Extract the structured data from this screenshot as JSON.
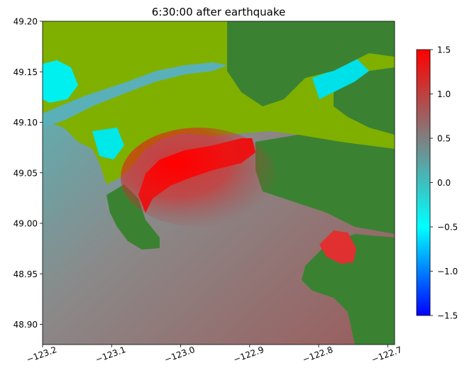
{
  "chart_data": {
    "type": "heatmap",
    "title": "6:30:00 after earthquake",
    "xlabel": "",
    "ylabel": "",
    "xlim": [
      -123.2,
      -122.69
    ],
    "ylim": [
      48.88,
      49.2
    ],
    "x_ticks": [
      "−123.2",
      "−123.1",
      "−123.0",
      "−122.9",
      "−122.8",
      "−122.7"
    ],
    "x_tick_values": [
      -123.2,
      -123.1,
      -123.0,
      -122.9,
      -122.8,
      -122.7
    ],
    "y_ticks": [
      "49.20",
      "49.15",
      "49.10",
      "49.05",
      "49.00",
      "48.95",
      "48.90"
    ],
    "y_tick_values": [
      49.2,
      49.15,
      49.1,
      49.05,
      49.0,
      48.95,
      48.9
    ],
    "colorbar": {
      "range": [
        -1.5,
        1.5
      ],
      "ticks": [
        "1.5",
        "1.0",
        "0.5",
        "0.0",
        "−0.5",
        "−1.0",
        "−1.5"
      ],
      "tick_values": [
        1.5,
        1.0,
        0.5,
        0.0,
        -0.5,
        -1.0,
        -1.5
      ],
      "colors": [
        "#0000ff",
        "#00ffff",
        "#7f7f7f",
        "#ff0000"
      ]
    },
    "land_colors": {
      "dry_land": "#7fb000",
      "hills": "#3a8232"
    },
    "grid": false
  }
}
